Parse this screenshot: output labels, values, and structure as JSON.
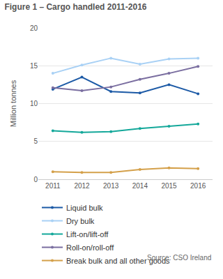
{
  "chart_data": {
    "type": "line",
    "title": "Figure 1 – Cargo handled 2011-2016",
    "y_label": "Million tonnes",
    "categories": [
      "2011",
      "2012",
      "2013",
      "2014",
      "2015",
      "2016"
    ],
    "series": [
      {
        "name": "Liquid bulk",
        "color": "#1c5aa6",
        "values": [
          11.9,
          13.5,
          11.6,
          11.4,
          12.5,
          11.3
        ]
      },
      {
        "name": "Dry bulk",
        "color": "#a9d1f5",
        "values": [
          14.0,
          15.1,
          16.0,
          15.2,
          15.9,
          16.0
        ]
      },
      {
        "name": "Lift-on/lift-off",
        "color": "#14a89a",
        "values": [
          6.4,
          6.2,
          6.3,
          6.7,
          7.0,
          7.3
        ]
      },
      {
        "name": "Roll-on/roll-off",
        "color": "#7a6ea0",
        "values": [
          12.1,
          11.7,
          12.2,
          13.2,
          14.0,
          14.9
        ]
      },
      {
        "name": "Break bulk and all other goods",
        "color": "#d4a04a",
        "values": [
          1.0,
          0.9,
          0.9,
          1.3,
          1.5,
          1.4
        ]
      }
    ],
    "ylim": [
      0,
      20
    ],
    "yticks": [
      0,
      5,
      10,
      15,
      20
    ],
    "grid": true,
    "legend": "bottom",
    "marker": "circle",
    "annotations": [
      "Source: CSO Ireland"
    ]
  }
}
